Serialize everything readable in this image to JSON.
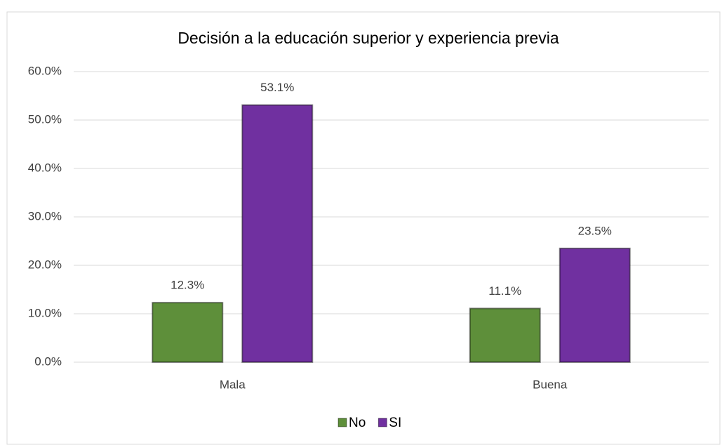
{
  "chart_data": {
    "type": "bar",
    "title": "Decisión a la educación superior y experiencia previa",
    "categories": [
      "Mala",
      "Buena"
    ],
    "series": [
      {
        "name": "No",
        "color": "#5e8f3a",
        "values": [
          12.3,
          11.1
        ],
        "value_labels": [
          "12.3%",
          "11.1%"
        ]
      },
      {
        "name": "SI",
        "color": "#7030a0",
        "values": [
          53.1,
          23.5
        ],
        "value_labels": [
          "53.1%",
          "23.5%"
        ]
      }
    ],
    "ylim": [
      0,
      60
    ],
    "yticks": [
      {
        "value": 0,
        "label": "0.0%"
      },
      {
        "value": 10,
        "label": "10.0%"
      },
      {
        "value": 20,
        "label": "20.0%"
      },
      {
        "value": 30,
        "label": "30.0%"
      },
      {
        "value": 40,
        "label": "40.0%"
      },
      {
        "value": 50,
        "label": "50.0%"
      },
      {
        "value": 60,
        "label": "60.0%"
      }
    ],
    "grid": true,
    "legend": "bottom"
  }
}
